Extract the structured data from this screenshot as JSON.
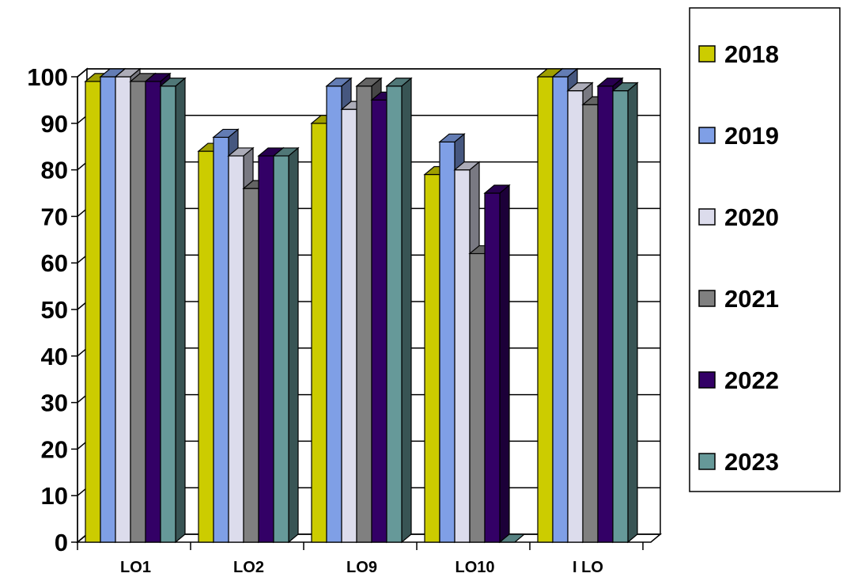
{
  "chart_data": {
    "type": "bar",
    "categories": [
      "LO1",
      "LO2",
      "LO9",
      "LO10",
      "I LO"
    ],
    "series": [
      {
        "name": "2018",
        "color": "#CCCC00",
        "values": [
          99,
          84,
          90,
          79,
          100
        ]
      },
      {
        "name": "2019",
        "color": "#7F9FE6",
        "values": [
          100,
          87,
          98,
          86,
          100
        ]
      },
      {
        "name": "2020",
        "color": "#DCDCEC",
        "values": [
          100,
          83,
          93,
          80,
          97
        ]
      },
      {
        "name": "2021",
        "color": "#808080",
        "values": [
          99,
          76,
          98,
          62,
          94
        ]
      },
      {
        "name": "2022",
        "color": "#330066",
        "values": [
          99,
          83,
          95,
          75,
          98
        ]
      },
      {
        "name": "2023",
        "color": "#669999",
        "values": [
          98,
          83,
          98,
          0,
          97
        ]
      }
    ],
    "ylim": [
      0,
      100
    ],
    "yticks": [
      0,
      10,
      20,
      30,
      40,
      50,
      60,
      70,
      80,
      90,
      100
    ],
    "grid": true,
    "legend_position": "right",
    "three_d": true
  }
}
